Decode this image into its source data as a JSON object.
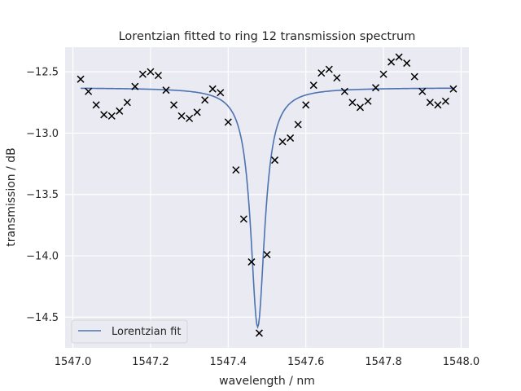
{
  "chart_data": {
    "type": "scatter",
    "title": "Lorentzian fitted to ring 12 transmission spectrum",
    "xlabel": "wavelength / nm",
    "ylabel": "transmission / dB",
    "xlim": [
      1546.98,
      1548.02
    ],
    "ylim": [
      -14.75,
      -12.3
    ],
    "x_ticks": [
      1547.0,
      1547.2,
      1547.4,
      1547.6,
      1547.8,
      1548.0
    ],
    "x_tick_labels": [
      "1547.0",
      "1547.2",
      "1547.4",
      "1547.6",
      "1547.8",
      "1548.0"
    ],
    "y_ticks": [
      -12.5,
      -13.0,
      -13.5,
      -14.0,
      -14.5
    ],
    "y_tick_labels": [
      "−12.5",
      "−13.0",
      "−13.5",
      "−14.0",
      "−14.5"
    ],
    "grid": true,
    "legend": {
      "position": "lower-left",
      "entries": [
        "Lorentzian fit"
      ]
    },
    "background_color": "#eaeaf2",
    "fit_color": "#4c72b0",
    "marker_color": "#000000",
    "measured": {
      "x": [
        1547.02,
        1547.04,
        1547.06,
        1547.08,
        1547.1,
        1547.12,
        1547.14,
        1547.16,
        1547.18,
        1547.2,
        1547.22,
        1547.24,
        1547.26,
        1547.28,
        1547.3,
        1547.32,
        1547.34,
        1547.36,
        1547.38,
        1547.4,
        1547.42,
        1547.44,
        1547.46,
        1547.48,
        1547.5,
        1547.52,
        1547.54,
        1547.56,
        1547.58,
        1547.6,
        1547.62,
        1547.64,
        1547.66,
        1547.68,
        1547.7,
        1547.72,
        1547.74,
        1547.76,
        1547.78,
        1547.8,
        1547.82,
        1547.84,
        1547.86,
        1547.88,
        1547.9,
        1547.92,
        1547.94,
        1547.96,
        1547.98
      ],
      "y": [
        -12.56,
        -12.66,
        -12.77,
        -12.85,
        -12.86,
        -12.82,
        -12.75,
        -12.62,
        -12.52,
        -12.5,
        -12.53,
        -12.65,
        -12.77,
        -12.86,
        -12.88,
        -12.83,
        -12.73,
        -12.64,
        -12.67,
        -12.91,
        -13.3,
        -13.7,
        -14.05,
        -14.63,
        -13.99,
        -13.22,
        -13.07,
        -13.04,
        -12.93,
        -12.77,
        -12.61,
        -12.51,
        -12.48,
        -12.55,
        -12.66,
        -12.75,
        -12.79,
        -12.74,
        -12.63,
        -12.52,
        -12.42,
        -12.38,
        -12.43,
        -12.54,
        -12.66,
        -12.75,
        -12.77,
        -12.74,
        -12.64
      ]
    },
    "series": [
      {
        "name": "Lorentzian fit",
        "model": "lorentzian",
        "x_range": [
          1547.02,
          1547.98
        ],
        "baseline": -12.63,
        "depth": 1.95,
        "center": 1547.476,
        "hwhm": 0.022
      }
    ]
  }
}
